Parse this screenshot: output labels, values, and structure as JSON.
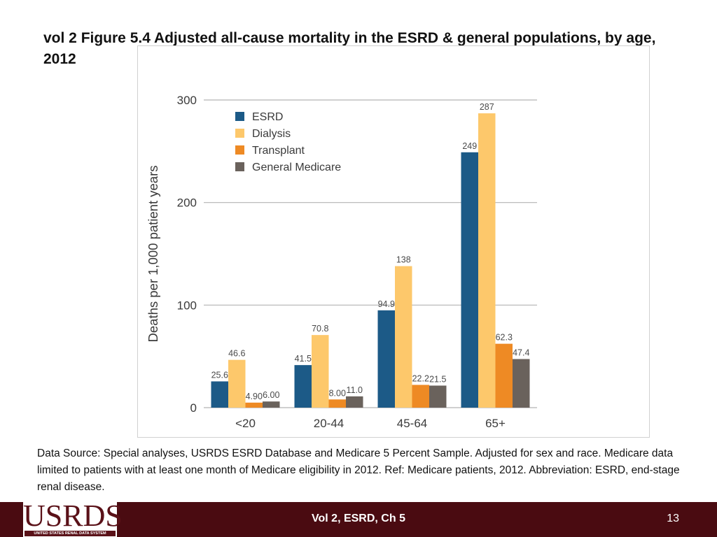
{
  "slide": {
    "title": "vol 2  Figure 5.4 Adjusted all-cause mortality in the ESRD & general populations, by age, 2012",
    "footnote": "Data Source: Special analyses, USRDS ESRD Database and Medicare 5 Percent Sample. Adjusted for sex and race. Medicare data limited to patients with at least one month of Medicare eligibility in 2012. Ref: Medicare patients, 2012. Abbreviation: ESRD, end-stage renal disease.",
    "footer_center": "Vol 2, ESRD, Ch 5",
    "page_number": "13"
  },
  "logo": {
    "text": "USRDS",
    "subtext": "UNITED STATES RENAL DATA SYSTEM",
    "color": "#5a1118"
  },
  "colors": {
    "footer_bar": "#4a0b11",
    "gridline": "#b3b3b3",
    "axis_text": "#3a3a3a"
  },
  "chart_data": {
    "type": "bar",
    "title": "",
    "xlabel": "",
    "ylabel": "Deaths per 1,000 patient years",
    "ylim": [
      0,
      300
    ],
    "yticks": [
      0,
      100,
      200,
      300
    ],
    "grid": true,
    "legend_position": "top-left",
    "categories": [
      "<20",
      "20-44",
      "45-64",
      "65+"
    ],
    "series": [
      {
        "name": "ESRD",
        "color": "#1c5a87",
        "values": [
          25.6,
          41.5,
          94.9,
          249
        ],
        "labels": [
          "25.6",
          "41.5",
          "94.9",
          "249"
        ]
      },
      {
        "name": "Dialysis",
        "color": "#fdc86b",
        "values": [
          46.6,
          70.8,
          138,
          287
        ],
        "labels": [
          "46.6",
          "70.8",
          "138",
          "287"
        ]
      },
      {
        "name": "Transplant",
        "color": "#ee8a24",
        "values": [
          4.9,
          8.0,
          22.2,
          62.3
        ],
        "labels": [
          "4.90",
          "8.00",
          "22.2",
          "62.3"
        ]
      },
      {
        "name": "General Medicare",
        "color": "#6a625c",
        "values": [
          6.0,
          11.0,
          21.5,
          47.4
        ],
        "labels": [
          "6.00",
          "11.0",
          "21.5",
          "47.4"
        ]
      }
    ]
  }
}
